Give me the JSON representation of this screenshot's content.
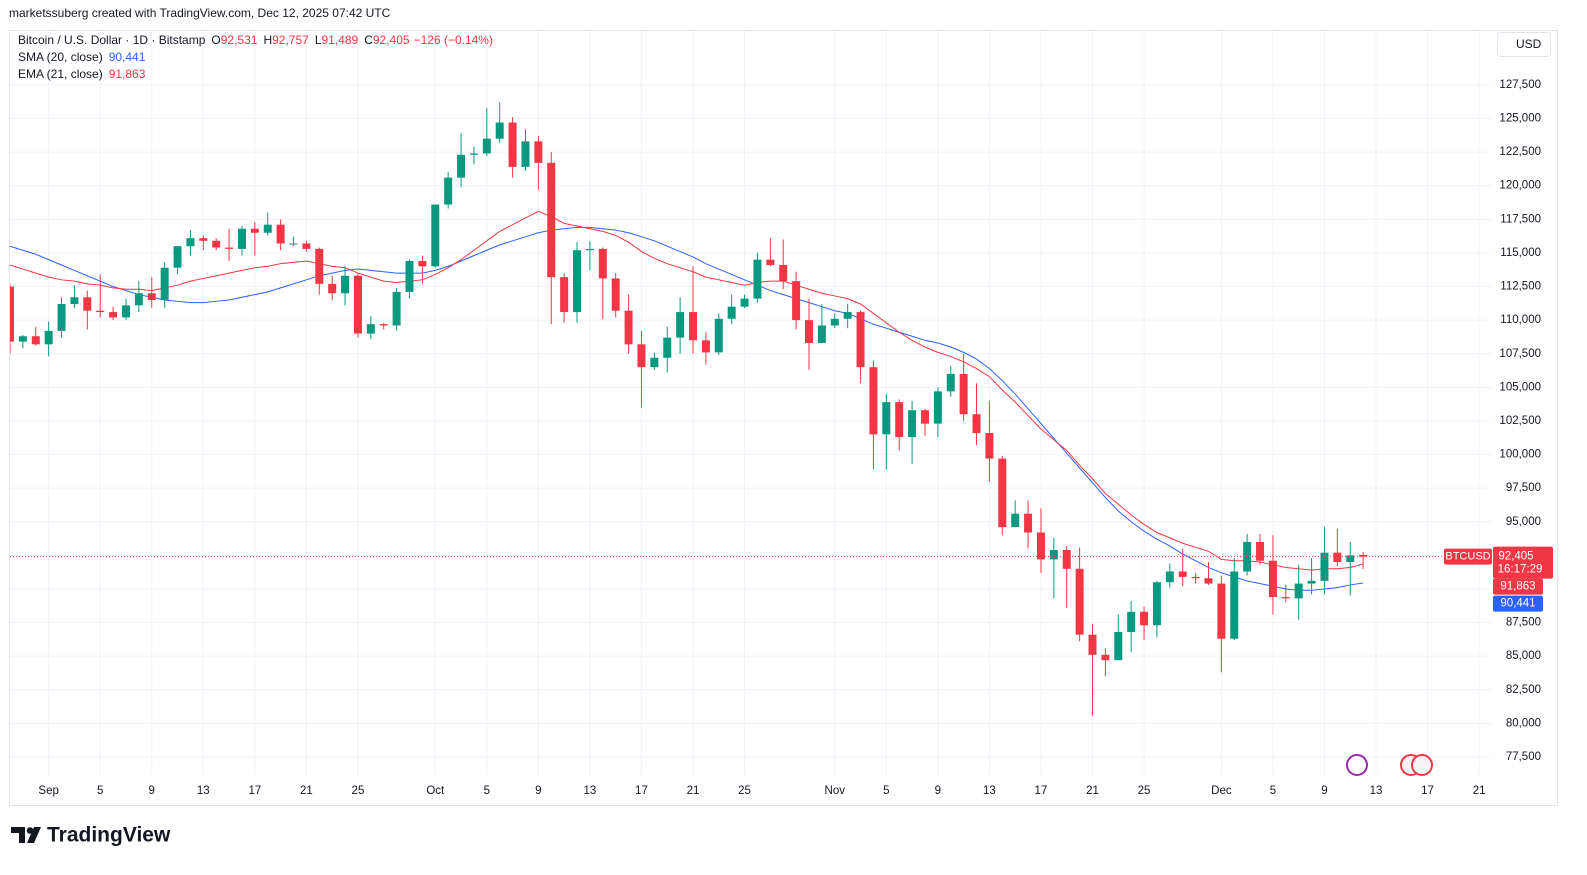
{
  "chart_data": {
    "type": "candlestick",
    "watermark": "marketssuberg created with TradingView.com, Dec 12, 2025 07:42 UTC",
    "symbol": "Bitcoin / U.S. Dollar · 1D · Bitstamp",
    "ohlc_legend": [
      {
        "key": "O",
        "value": "92,531"
      },
      {
        "key": "H",
        "value": "92,757"
      },
      {
        "key": "L",
        "value": "91,489"
      },
      {
        "key": "C",
        "value": "92,405"
      }
    ],
    "change": "−126 (−0.14%)",
    "currency": "USD",
    "up_color": "#089981",
    "down_color": "#f23645",
    "x": [
      "2025-08-29",
      "2025-08-30",
      "2025-08-31",
      "2025-09-01",
      "2025-09-02",
      "2025-09-03",
      "2025-09-04",
      "2025-09-05",
      "2025-09-06",
      "2025-09-07",
      "2025-09-08",
      "2025-09-09",
      "2025-09-10",
      "2025-09-11",
      "2025-09-12",
      "2025-09-13",
      "2025-09-14",
      "2025-09-15",
      "2025-09-16",
      "2025-09-17",
      "2025-09-18",
      "2025-09-19",
      "2025-09-20",
      "2025-09-21",
      "2025-09-22",
      "2025-09-23",
      "2025-09-24",
      "2025-09-25",
      "2025-09-26",
      "2025-09-27",
      "2025-09-28",
      "2025-09-29",
      "2025-09-30",
      "2025-10-01",
      "2025-10-02",
      "2025-10-03",
      "2025-10-04",
      "2025-10-05",
      "2025-10-06",
      "2025-10-07",
      "2025-10-08",
      "2025-10-09",
      "2025-10-10",
      "2025-10-11",
      "2025-10-12",
      "2025-10-13",
      "2025-10-14",
      "2025-10-15",
      "2025-10-16",
      "2025-10-17",
      "2025-10-18",
      "2025-10-19",
      "2025-10-20",
      "2025-10-21",
      "2025-10-22",
      "2025-10-23",
      "2025-10-24",
      "2025-10-25",
      "2025-10-26",
      "2025-10-27",
      "2025-10-28",
      "2025-10-29",
      "2025-10-30",
      "2025-10-31",
      "2025-11-01",
      "2025-11-02",
      "2025-11-03",
      "2025-11-04",
      "2025-11-05",
      "2025-11-06",
      "2025-11-07",
      "2025-11-08",
      "2025-11-09",
      "2025-11-10",
      "2025-11-11",
      "2025-11-12",
      "2025-11-13",
      "2025-11-14",
      "2025-11-15",
      "2025-11-16",
      "2025-11-17",
      "2025-11-18",
      "2025-11-19",
      "2025-11-20",
      "2025-11-21",
      "2025-11-22",
      "2025-11-23",
      "2025-11-24",
      "2025-11-25",
      "2025-11-26",
      "2025-11-27",
      "2025-11-28",
      "2025-11-29",
      "2025-11-30",
      "2025-12-01",
      "2025-12-02",
      "2025-12-03",
      "2025-12-04",
      "2025-12-05",
      "2025-12-06",
      "2025-12-07",
      "2025-12-08",
      "2025-12-09",
      "2025-12-10",
      "2025-12-11",
      "2025-12-12"
    ],
    "xlim": [
      "2025-08-29",
      "2025-12-22"
    ],
    "xticks": [
      {
        "value": "2025-09-01",
        "label": "Sep"
      },
      {
        "value": "2025-09-05",
        "label": "5"
      },
      {
        "value": "2025-09-09",
        "label": "9"
      },
      {
        "value": "2025-09-13",
        "label": "13"
      },
      {
        "value": "2025-09-17",
        "label": "17"
      },
      {
        "value": "2025-09-21",
        "label": "21"
      },
      {
        "value": "2025-09-25",
        "label": "25"
      },
      {
        "value": "2025-10-01",
        "label": "Oct"
      },
      {
        "value": "2025-10-05",
        "label": "5"
      },
      {
        "value": "2025-10-09",
        "label": "9"
      },
      {
        "value": "2025-10-13",
        "label": "13"
      },
      {
        "value": "2025-10-17",
        "label": "17"
      },
      {
        "value": "2025-10-21",
        "label": "21"
      },
      {
        "value": "2025-10-25",
        "label": "25"
      },
      {
        "value": "2025-11-01",
        "label": "Nov"
      },
      {
        "value": "2025-11-05",
        "label": "5"
      },
      {
        "value": "2025-11-09",
        "label": "9"
      },
      {
        "value": "2025-11-13",
        "label": "13"
      },
      {
        "value": "2025-11-17",
        "label": "17"
      },
      {
        "value": "2025-11-21",
        "label": "21"
      },
      {
        "value": "2025-11-25",
        "label": "25"
      },
      {
        "value": "2025-12-01",
        "label": "Dec"
      },
      {
        "value": "2025-12-05",
        "label": "5"
      },
      {
        "value": "2025-12-09",
        "label": "9"
      },
      {
        "value": "2025-12-13",
        "label": "13"
      },
      {
        "value": "2025-12-17",
        "label": "17"
      },
      {
        "value": "2025-12-21",
        "label": "21"
      }
    ],
    "ohlc": [
      [
        112500,
        112700,
        107500,
        108400
      ],
      [
        108400,
        108900,
        107900,
        108800
      ],
      [
        108800,
        109500,
        108100,
        108200
      ],
      [
        108200,
        109900,
        107300,
        109200
      ],
      [
        109200,
        111700,
        108700,
        111200
      ],
      [
        111200,
        112600,
        110900,
        111700
      ],
      [
        111700,
        112200,
        109300,
        110700
      ],
      [
        110700,
        113400,
        110200,
        110600
      ],
      [
        110600,
        111000,
        110000,
        110200
      ],
      [
        110200,
        111600,
        110000,
        111100
      ],
      [
        111100,
        112900,
        110600,
        112000
      ],
      [
        112000,
        113200,
        110900,
        111500
      ],
      [
        111500,
        114300,
        110900,
        113900
      ],
      [
        113900,
        115500,
        113400,
        115500
      ],
      [
        115500,
        116700,
        114800,
        116100
      ],
      [
        116100,
        116300,
        115200,
        115900
      ],
      [
        115900,
        116100,
        115200,
        115400
      ],
      [
        115400,
        116800,
        114400,
        115300
      ],
      [
        115300,
        117000,
        114800,
        116800
      ],
      [
        116800,
        117300,
        114800,
        116500
      ],
      [
        116500,
        118000,
        116300,
        117100
      ],
      [
        117100,
        117500,
        115200,
        115700
      ],
      [
        115700,
        116200,
        115500,
        115700
      ],
      [
        115700,
        115900,
        115100,
        115300
      ],
      [
        115300,
        115400,
        111900,
        112700
      ],
      [
        112700,
        113300,
        111500,
        112000
      ],
      [
        112000,
        114000,
        111100,
        113300
      ],
      [
        113300,
        113500,
        108700,
        109000
      ],
      [
        109000,
        110300,
        108600,
        109700
      ],
      [
        109700,
        109800,
        109300,
        109600
      ],
      [
        109600,
        112400,
        109200,
        112100
      ],
      [
        112100,
        114500,
        111600,
        114400
      ],
      [
        114400,
        114800,
        112700,
        114000
      ],
      [
        114000,
        118600,
        113900,
        118600
      ],
      [
        118600,
        121000,
        118300,
        120600
      ],
      [
        120600,
        123900,
        119900,
        122300
      ],
      [
        122300,
        122900,
        121600,
        122400
      ],
      [
        122400,
        125800,
        122200,
        123500
      ],
      [
        123500,
        126200,
        123200,
        124700
      ],
      [
        124700,
        125100,
        120600,
        121400
      ],
      [
        121400,
        124200,
        121100,
        123300
      ],
      [
        123300,
        123700,
        119700,
        121700
      ],
      [
        121700,
        122500,
        109700,
        113200
      ],
      [
        113200,
        113500,
        109800,
        110600
      ],
      [
        110600,
        115800,
        109800,
        115200
      ],
      [
        115200,
        115900,
        113700,
        115300
      ],
      [
        115300,
        115400,
        110100,
        113100
      ],
      [
        113100,
        113500,
        110200,
        110700
      ],
      [
        110700,
        111900,
        107500,
        108200
      ],
      [
        108200,
        109200,
        103500,
        106500
      ],
      [
        106500,
        107600,
        106300,
        107200
      ],
      [
        107200,
        109500,
        106100,
        108700
      ],
      [
        108700,
        111700,
        107500,
        110600
      ],
      [
        110600,
        114000,
        107500,
        108500
      ],
      [
        108500,
        109100,
        106700,
        107600
      ],
      [
        107600,
        110500,
        107400,
        110100
      ],
      [
        110100,
        111900,
        109700,
        111000
      ],
      [
        111000,
        111900,
        110900,
        111600
      ],
      [
        111600,
        115000,
        111300,
        114500
      ],
      [
        114500,
        116100,
        114000,
        114100
      ],
      [
        114100,
        116000,
        112300,
        112900
      ],
      [
        112900,
        113600,
        109300,
        110000
      ],
      [
        110000,
        111600,
        106300,
        108300
      ],
      [
        108300,
        111200,
        108300,
        109600
      ],
      [
        109600,
        110500,
        109400,
        110100
      ],
      [
        110100,
        111200,
        109400,
        110600
      ],
      [
        110600,
        110700,
        105300,
        106500
      ],
      [
        106500,
        107000,
        98900,
        101500
      ],
      [
        101500,
        104500,
        98900,
        103900
      ],
      [
        103900,
        104100,
        100300,
        101300
      ],
      [
        101300,
        104000,
        99300,
        103300
      ],
      [
        103300,
        103400,
        101400,
        102300
      ],
      [
        102300,
        105000,
        101300,
        104700
      ],
      [
        104700,
        106600,
        104300,
        106000
      ],
      [
        106000,
        107500,
        102500,
        103000
      ],
      [
        103000,
        105300,
        100700,
        101600
      ],
      [
        101600,
        104000,
        98000,
        99700
      ],
      [
        99700,
        99900,
        94000,
        94600
      ],
      [
        94600,
        96600,
        94600,
        95600
      ],
      [
        95600,
        96600,
        93000,
        94200
      ],
      [
        94200,
        96000,
        91200,
        92200
      ],
      [
        92200,
        93800,
        89300,
        92900
      ],
      [
        92900,
        93200,
        88600,
        91500
      ],
      [
        91500,
        93100,
        86100,
        86600
      ],
      [
        86600,
        87400,
        80600,
        85100
      ],
      [
        85100,
        85600,
        83500,
        84700
      ],
      [
        84700,
        88100,
        84700,
        86800
      ],
      [
        86800,
        89100,
        85300,
        88300
      ],
      [
        88300,
        88700,
        86200,
        87300
      ],
      [
        87300,
        90600,
        86400,
        90500
      ],
      [
        90500,
        91900,
        90100,
        91300
      ],
      [
        91300,
        93000,
        90200,
        90900
      ],
      [
        90900,
        91200,
        90400,
        90800
      ],
      [
        90800,
        92000,
        90300,
        90400
      ],
      [
        90400,
        91000,
        83800,
        86300
      ],
      [
        86300,
        92300,
        86200,
        91300
      ],
      [
        91300,
        94100,
        91000,
        93500
      ],
      [
        93500,
        94100,
        91800,
        92100
      ],
      [
        92100,
        94000,
        88100,
        89400
      ],
      [
        89400,
        90300,
        89000,
        89300
      ],
      [
        89300,
        91800,
        87700,
        90400
      ],
      [
        90400,
        92300,
        89600,
        90600
      ],
      [
        90600,
        94600,
        89600,
        92700
      ],
      [
        92700,
        94500,
        91700,
        92000
      ],
      [
        92000,
        93500,
        89500,
        92500
      ],
      [
        92531,
        92757,
        91489,
        92405
      ]
    ],
    "ylim": [
      76160,
      131510
    ],
    "yticks": [
      {
        "value": 77500,
        "label": "77,500"
      },
      {
        "value": 80000,
        "label": "80,000"
      },
      {
        "value": 82500,
        "label": "82,500"
      },
      {
        "value": 85000,
        "label": "85,000"
      },
      {
        "value": 87500,
        "label": "87,500"
      },
      {
        "value": 90000,
        "label": "90,000"
      },
      {
        "value": 92500,
        "label": "92,500"
      },
      {
        "value": 95000,
        "label": "95,000"
      },
      {
        "value": 97500,
        "label": "97,500"
      },
      {
        "value": 100000,
        "label": "100,000"
      },
      {
        "value": 102500,
        "label": "102,500"
      },
      {
        "value": 105000,
        "label": "105,000"
      },
      {
        "value": 107500,
        "label": "107,500"
      },
      {
        "value": 110000,
        "label": "110,000"
      },
      {
        "value": 112500,
        "label": "112,500"
      },
      {
        "value": 115000,
        "label": "115,000"
      },
      {
        "value": 117500,
        "label": "117,500"
      },
      {
        "value": 120000,
        "label": "120,000"
      },
      {
        "value": 122500,
        "label": "122,500"
      },
      {
        "value": 125000,
        "label": "125,000"
      },
      {
        "value": 127500,
        "label": "127,500"
      }
    ],
    "grid": true,
    "indicators": [
      {
        "name": "SMA (20, close)",
        "color": "#2962ff",
        "last": {
          "value": 90441,
          "label": "90,441"
        },
        "values": [
          115500,
          115200,
          114900,
          114500,
          114100,
          113700,
          113300,
          112900,
          112500,
          112200,
          111900,
          111700,
          111500,
          111400,
          111300,
          111300,
          111400,
          111500,
          111700,
          111900,
          112100,
          112400,
          112700,
          113000,
          113300,
          113500,
          113700,
          113800,
          113700,
          113600,
          113500,
          113500,
          113500,
          113700,
          114000,
          114400,
          114800,
          115200,
          115600,
          115900,
          116200,
          116500,
          116700,
          116800,
          116900,
          116900,
          116800,
          116700,
          116500,
          116200,
          115900,
          115500,
          115100,
          114700,
          114200,
          113800,
          113400,
          113000,
          112600,
          112200,
          111900,
          111600,
          111300,
          111000,
          110700,
          110500,
          110100,
          109700,
          109400,
          109100,
          108800,
          108500,
          108300,
          108000,
          107600,
          107100,
          106400,
          105500,
          104500,
          103400,
          102300,
          101200,
          100100,
          99000,
          97900,
          96800,
          95800,
          95000,
          94300,
          93700,
          93200,
          92600,
          92100,
          91600,
          91200,
          90900,
          90600,
          90400,
          90200,
          90000,
          89900,
          89900,
          90000,
          90100,
          90300,
          90441
        ]
      },
      {
        "name": "EMA (21, close)",
        "color": "#f23645",
        "last": {
          "value": 91863,
          "label": "91,863"
        },
        "values": [
          114100,
          113800,
          113500,
          113200,
          113000,
          112900,
          112700,
          112600,
          112400,
          112300,
          112300,
          112200,
          112400,
          112600,
          112900,
          113100,
          113300,
          113500,
          113700,
          113900,
          114000,
          114200,
          114300,
          114400,
          114200,
          114000,
          113900,
          113500,
          113200,
          112900,
          112800,
          112900,
          113000,
          113400,
          113900,
          114500,
          115200,
          115900,
          116600,
          117100,
          117600,
          118100,
          117700,
          117200,
          117000,
          116800,
          116600,
          116300,
          115800,
          115100,
          114600,
          114200,
          113900,
          113600,
          113200,
          113000,
          112800,
          112600,
          112800,
          112900,
          112900,
          112600,
          112300,
          112000,
          111800,
          111600,
          111200,
          110500,
          109800,
          109100,
          108500,
          108000,
          107600,
          107300,
          106900,
          106400,
          105800,
          104800,
          103900,
          102900,
          101900,
          101100,
          100300,
          99200,
          98200,
          97100,
          96300,
          95500,
          94800,
          94200,
          93800,
          93400,
          93100,
          92800,
          92200,
          92100,
          92100,
          92000,
          91800,
          91600,
          91500,
          91400,
          91500,
          91500,
          91600,
          91863
        ]
      }
    ],
    "last_price": {
      "symbol": "BTCUSD",
      "value": 92405,
      "label": "92,405",
      "countdown": "16:17:29",
      "color": "#f23645"
    },
    "brand": "TradingView"
  }
}
